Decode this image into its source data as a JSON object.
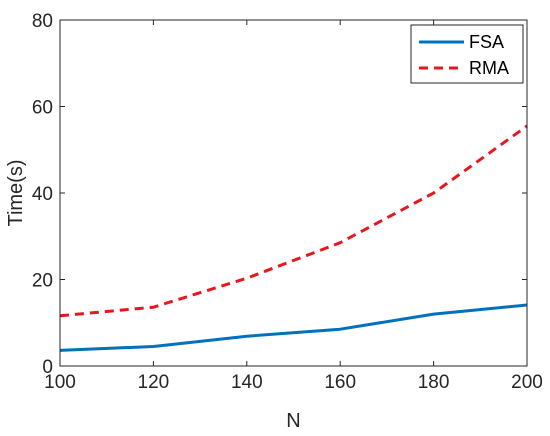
{
  "chart_data": {
    "type": "line",
    "xlabel": "N",
    "ylabel": "Time(s)",
    "xlim": [
      100,
      200
    ],
    "ylim": [
      0,
      80
    ],
    "xticks": [
      "100",
      "120",
      "140",
      "160",
      "180",
      "200"
    ],
    "yticks": [
      "0",
      "20",
      "40",
      "60",
      "80"
    ],
    "grid": false,
    "legend_position": "top-right",
    "x": [
      100,
      120,
      140,
      160,
      180,
      200
    ],
    "series": [
      {
        "name": "FSA",
        "values": [
          3.6,
          4.5,
          6.9,
          8.5,
          12.0,
          14.1
        ],
        "color": "#0072BD",
        "style": "solid"
      },
      {
        "name": "RMA",
        "values": [
          11.6,
          13.6,
          20.3,
          28.5,
          40.0,
          55.5
        ],
        "color": "#E8171F",
        "style": "dashed"
      }
    ]
  }
}
